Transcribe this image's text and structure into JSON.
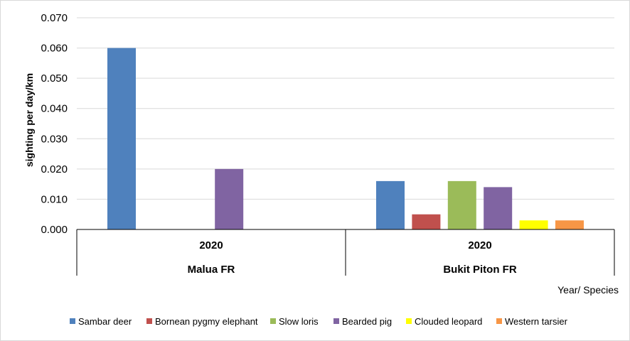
{
  "chart_data": {
    "type": "bar",
    "title": "",
    "ylabel": "sighting per day/km",
    "xlabel": "Year/ Species",
    "ylim": [
      0,
      0.07
    ],
    "yticks": [
      "0.000",
      "0.010",
      "0.020",
      "0.030",
      "0.040",
      "0.050",
      "0.060",
      "0.070"
    ],
    "grid": true,
    "legend_position": "bottom",
    "categories": [
      {
        "year": "2020",
        "site": "Malua FR"
      },
      {
        "year": "2020",
        "site": "Bukit Piton FR"
      }
    ],
    "series": [
      {
        "name": "Sambar deer",
        "color": "#4F81BD",
        "values": [
          0.06,
          0.016
        ]
      },
      {
        "name": "Bornean pygmy elephant",
        "color": "#C0504D",
        "values": [
          0,
          0.005
        ]
      },
      {
        "name": "Slow loris",
        "color": "#9BBB59",
        "values": [
          0,
          0.016
        ]
      },
      {
        "name": "Bearded pig",
        "color": "#8064A2",
        "values": [
          0.02,
          0.014
        ]
      },
      {
        "name": "Clouded leopard",
        "color": "#FFFF00",
        "values": [
          0,
          0.003
        ]
      },
      {
        "name": "Western tarsier",
        "color": "#F79646",
        "values": [
          0,
          0.003
        ]
      }
    ]
  }
}
